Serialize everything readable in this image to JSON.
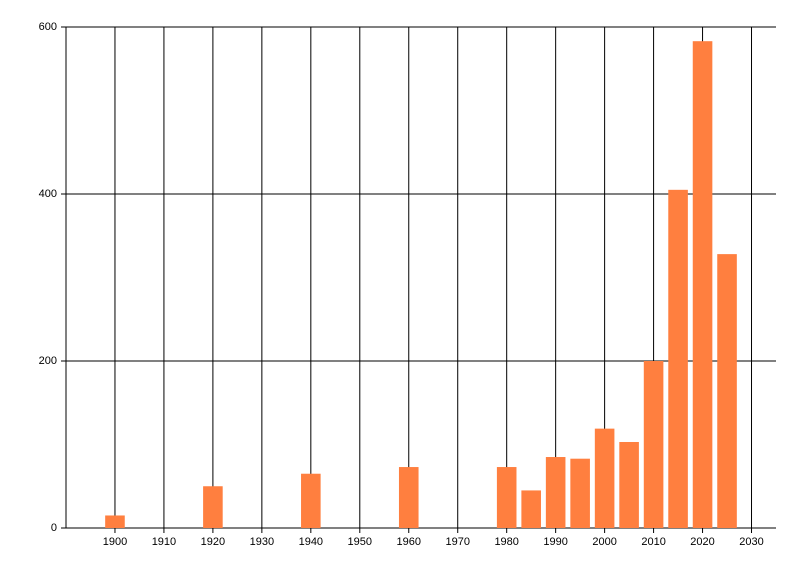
{
  "chart_data": {
    "type": "bar",
    "x": [
      1900,
      1920,
      1940,
      1960,
      1980,
      1985,
      1990,
      1995,
      2000,
      2005,
      2010,
      2015,
      2020,
      2025
    ],
    "values": [
      15,
      50,
      65,
      73,
      73,
      45,
      85,
      83,
      119,
      103,
      200,
      405,
      583,
      328
    ],
    "color": "#ff7f3f",
    "bar_width": 4,
    "xlim": [
      1890,
      2035
    ],
    "xticks": [
      1900,
      1910,
      1920,
      1930,
      1940,
      1950,
      1960,
      1970,
      1980,
      1990,
      2000,
      2010,
      2020,
      2030
    ],
    "ylim": [
      0,
      600
    ],
    "yticks": [
      0,
      200,
      400,
      600
    ],
    "grid": true
  }
}
